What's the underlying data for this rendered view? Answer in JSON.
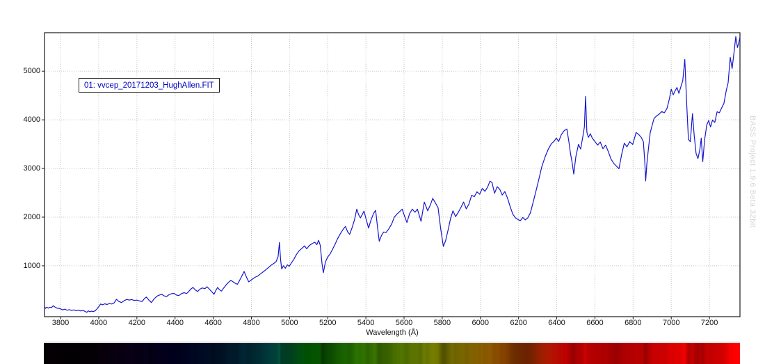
{
  "watermark": "BASS Project 1.9.6 Beta 32bit",
  "annotation": {
    "label": "01: vvcep_20171203_HughAllen.FIT"
  },
  "colors": {
    "curve": "#1616cd",
    "annotation_text": "#0000c0",
    "grid": "#c8c8c3",
    "axis": "#1a1a1a",
    "watermark": "#d6d6d4",
    "background": "#ffffff"
  },
  "chart_data": {
    "type": "line",
    "title": "",
    "xlabel": "Wavelength (Å)",
    "ylabel": "",
    "grid": true,
    "legend_position": "annotation box upper-left inside plot",
    "xlim": [
      3716,
      7360
    ],
    "ylim": [
      -45,
      5790
    ],
    "x_ticks": [
      3800,
      4000,
      4200,
      4400,
      4600,
      4800,
      5000,
      5200,
      5400,
      5600,
      5800,
      6000,
      6200,
      6400,
      6600,
      6800,
      7000,
      7200
    ],
    "y_ticks": [
      1000,
      2000,
      3000,
      4000,
      5000
    ],
    "colorbar": {
      "description": "synthesized visible-spectrum strip below x axis; hue follows wavelength, brightness follows flux (dark at blue end, bright red at long wavelengths, dark striations at absorption dips)",
      "wavelength_range": [
        3716,
        7360
      ]
    },
    "series": [
      {
        "name": "01: vvcep_20171203_HughAllen.FIT",
        "x": [
          3716,
          3722,
          3728,
          3736,
          3744,
          3752,
          3762,
          3772,
          3782,
          3792,
          3800,
          3812,
          3822,
          3834,
          3846,
          3858,
          3870,
          3882,
          3894,
          3906,
          3918,
          3930,
          3938,
          3946,
          3954,
          3962,
          3972,
          3982,
          3992,
          4002,
          4010,
          4020,
          4032,
          4044,
          4056,
          4068,
          4080,
          4093,
          4105,
          4119,
          4135,
          4148,
          4160,
          4172,
          4186,
          4200,
          4214,
          4228,
          4240,
          4250,
          4262,
          4276,
          4290,
          4305,
          4318,
          4330,
          4342,
          4355,
          4368,
          4382,
          4395,
          4408,
          4420,
          4434,
          4448,
          4460,
          4470,
          4482,
          4494,
          4506,
          4518,
          4530,
          4543,
          4556,
          4568,
          4580,
          4592,
          4604,
          4614,
          4623,
          4632,
          4643,
          4655,
          4668,
          4680,
          4692,
          4704,
          4716,
          4727,
          4738,
          4750,
          4762,
          4774,
          4786,
          4798,
          4810,
          4822,
          4834,
          4846,
          4858,
          4870,
          4882,
          4894,
          4906,
          4918,
          4930,
          4940,
          4947,
          4953,
          4959,
          4968,
          4978,
          4988,
          4998,
          5010,
          5022,
          5036,
          5050,
          5064,
          5078,
          5090,
          5103,
          5118,
          5132,
          5143,
          5152,
          5161,
          5170,
          5177,
          5188,
          5200,
          5212,
          5224,
          5238,
          5252,
          5266,
          5280,
          5293,
          5304,
          5315,
          5328,
          5340,
          5352,
          5362,
          5371,
          5381,
          5390,
          5402,
          5414,
          5427,
          5440,
          5451,
          5461,
          5470,
          5481,
          5493,
          5506,
          5520,
          5535,
          5549,
          5562,
          5576,
          5590,
          5604,
          5615,
          5629,
          5643,
          5657,
          5670,
          5689,
          5706,
          5724,
          5737,
          5750,
          5764,
          5778,
          5792,
          5806,
          5818,
          5832,
          5844,
          5856,
          5870,
          5884,
          5898,
          5912,
          5926,
          5940,
          5954,
          5968,
          5982,
          5996,
          6010,
          6024,
          6038,
          6050,
          6061,
          6074,
          6088,
          6101,
          6114,
          6128,
          6142,
          6156,
          6170,
          6184,
          6198,
          6209,
          6222,
          6235,
          6248,
          6262,
          6276,
          6290,
          6305,
          6322,
          6340,
          6356,
          6372,
          6386,
          6398,
          6410,
          6424,
          6440,
          6453,
          6464,
          6472,
          6481,
          6489,
          6500,
          6514,
          6525,
          6536,
          6545,
          6551,
          6558,
          6566,
          6576,
          6586,
          6600,
          6614,
          6628,
          6642,
          6656,
          6670,
          6684,
          6698,
          6712,
          6726,
          6740,
          6754,
          6768,
          6782,
          6798,
          6816,
          6830,
          6842,
          6854,
          6861,
          6866,
          6872,
          6880,
          6890,
          6900,
          6910,
          6922,
          6936,
          6950,
          6964,
          6978,
          6990,
          7000,
          7010,
          7020,
          7030,
          7040,
          7050,
          7060,
          7071,
          7080,
          7090,
          7100,
          7111,
          7120,
          7130,
          7140,
          7150,
          7157,
          7165,
          7175,
          7186,
          7196,
          7206,
          7216,
          7228,
          7240,
          7252,
          7264,
          7276,
          7288,
          7298,
          7309,
          7319,
          7329,
          7338,
          7347,
          7354,
          7360
        ],
        "y": [
          160,
          125,
          150,
          130,
          150,
          140,
          180,
          150,
          130,
          125,
          115,
          95,
          110,
          88,
          100,
          82,
          95,
          78,
          90,
          72,
          85,
          60,
          45,
          75,
          55,
          70,
          60,
          80,
          120,
          170,
          215,
          200,
          220,
          205,
          225,
          215,
          235,
          312,
          268,
          245,
          288,
          310,
          295,
          308,
          288,
          295,
          278,
          268,
          330,
          358,
          300,
          245,
          320,
          375,
          400,
          415,
          382,
          368,
          405,
          428,
          432,
          398,
          388,
          430,
          448,
          430,
          465,
          520,
          556,
          505,
          472,
          520,
          545,
          530,
          570,
          520,
          470,
          415,
          495,
          556,
          512,
          480,
          545,
          610,
          660,
          700,
          672,
          640,
          620,
          700,
          790,
          885,
          770,
          672,
          705,
          740,
          770,
          790,
          830,
          865,
          900,
          940,
          980,
          1020,
          1050,
          1090,
          1190,
          1480,
          1120,
          935,
          1000,
          950,
          1020,
          990,
          1060,
          1130,
          1230,
          1310,
          1355,
          1410,
          1350,
          1415,
          1455,
          1485,
          1435,
          1525,
          1420,
          1050,
          858,
          1080,
          1180,
          1240,
          1330,
          1440,
          1560,
          1660,
          1745,
          1810,
          1700,
          1645,
          1790,
          1945,
          2165,
          2050,
          1985,
          2055,
          2125,
          1945,
          1775,
          1945,
          2075,
          2140,
          1790,
          1505,
          1620,
          1695,
          1685,
          1760,
          1860,
          2000,
          2060,
          2110,
          2165,
          2005,
          1890,
          2075,
          2165,
          2100,
          2165,
          1915,
          2310,
          2130,
          2245,
          2385,
          2295,
          2195,
          1760,
          1400,
          1520,
          1760,
          1980,
          2130,
          2010,
          2100,
          2200,
          2310,
          2170,
          2270,
          2450,
          2420,
          2520,
          2470,
          2590,
          2530,
          2620,
          2740,
          2710,
          2490,
          2625,
          2575,
          2455,
          2525,
          2390,
          2215,
          2060,
          1985,
          1950,
          1925,
          1995,
          1945,
          1985,
          2090,
          2300,
          2520,
          2760,
          3040,
          3250,
          3400,
          3510,
          3560,
          3625,
          3555,
          3695,
          3780,
          3810,
          3540,
          3310,
          3110,
          2885,
          3240,
          3495,
          3400,
          3640,
          3855,
          4480,
          3745,
          3640,
          3715,
          3625,
          3555,
          3480,
          3545,
          3405,
          3480,
          3350,
          3195,
          3110,
          3050,
          2995,
          3290,
          3520,
          3445,
          3550,
          3495,
          3740,
          3695,
          3645,
          3550,
          3150,
          2745,
          3090,
          3395,
          3740,
          3890,
          4030,
          4075,
          4115,
          4170,
          4145,
          4240,
          4430,
          4630,
          4515,
          4595,
          4665,
          4545,
          4675,
          4800,
          5240,
          4390,
          3600,
          3550,
          4125,
          3695,
          3310,
          3205,
          3395,
          3625,
          3140,
          3595,
          3895,
          3985,
          3855,
          3995,
          3945,
          4165,
          4145,
          4245,
          4335,
          4595,
          4765,
          5285,
          5055,
          5390,
          5710,
          5485,
          5590,
          5695
        ]
      }
    ]
  }
}
